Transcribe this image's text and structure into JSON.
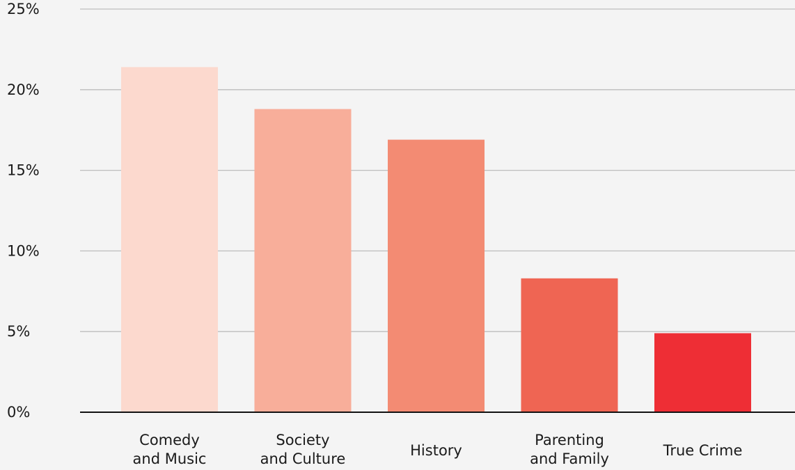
{
  "chart_data": {
    "type": "bar",
    "title": "",
    "xlabel": "",
    "ylabel": "",
    "ylim": [
      0,
      25
    ],
    "yticks": [
      0,
      5,
      10,
      15,
      20,
      25
    ],
    "ytick_labels": [
      "0%",
      "5%",
      "10%",
      "15%",
      "20%",
      "25%"
    ],
    "grid": true,
    "categories": [
      [
        "Comedy",
        "and Music"
      ],
      [
        "Society",
        "and Culture"
      ],
      [
        "History"
      ],
      [
        "Parenting",
        "and Family"
      ],
      [
        "True Crime"
      ]
    ],
    "values": [
      21.4,
      18.8,
      16.9,
      8.3,
      4.9
    ],
    "colors": [
      "#fcd9ce",
      "#f8ae9a",
      "#f38b73",
      "#ef6553",
      "#ee2e35"
    ]
  }
}
